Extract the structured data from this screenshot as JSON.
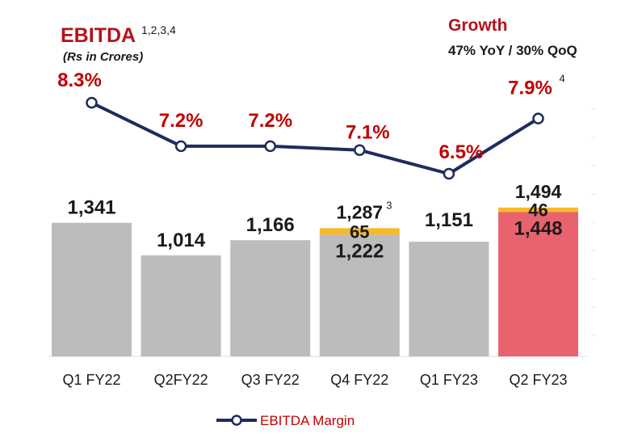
{
  "title": {
    "main": "EBITDA",
    "superscript": "1,2,3,4",
    "unit": "(Rs in Crores)"
  },
  "growth": {
    "label": "Growth",
    "value": "47% YoY / 30% QoQ"
  },
  "legend": {
    "label": "EBITDA Margin"
  },
  "colors": {
    "base": "#bcbcbc",
    "extra": "#f6b928",
    "highlight": "#e8636e",
    "line": "#1d2c5c",
    "red": "#c00000"
  },
  "chart_data": {
    "type": "bar",
    "categories": [
      "Q1 FY22",
      "Q2FY22",
      "Q3 FY22",
      "Q4 FY22",
      "Q1 FY23",
      "Q2 FY23"
    ],
    "series": [
      {
        "name": "EBITDA (base)",
        "values": [
          1341,
          1014,
          1166,
          1222,
          1151,
          1448
        ]
      },
      {
        "name": "EBITDA (additional)",
        "values": [
          0,
          0,
          0,
          65,
          0,
          46
        ]
      }
    ],
    "totals": [
      1341,
      1014,
      1166,
      1287,
      1151,
      1494
    ],
    "total_labels": [
      "1,341",
      "1,014",
      "1,166",
      "1,287",
      "1,151",
      "1,494"
    ],
    "base_labels": [
      "",
      "",
      "",
      "1,222",
      "",
      "1,448"
    ],
    "extra_labels": [
      "",
      "",
      "",
      "65",
      "",
      "46"
    ],
    "total_superscripts": [
      "",
      "",
      "",
      "3",
      "",
      ""
    ],
    "highlight_index": 5,
    "line_series": {
      "name": "EBITDA Margin",
      "values": [
        8.3,
        7.2,
        7.2,
        7.1,
        6.5,
        7.9
      ],
      "labels": [
        "8.3%",
        "7.2%",
        "7.2%",
        "7.1%",
        "6.5%",
        "7.9%"
      ],
      "superscripts": [
        "",
        "",
        "",
        "",
        "",
        "4"
      ]
    },
    "ylim": [
      0,
      1600
    ],
    "title": "EBITDA",
    "ylabel": "Rs in Crores",
    "xlabel": "",
    "legend_position": "bottom"
  }
}
